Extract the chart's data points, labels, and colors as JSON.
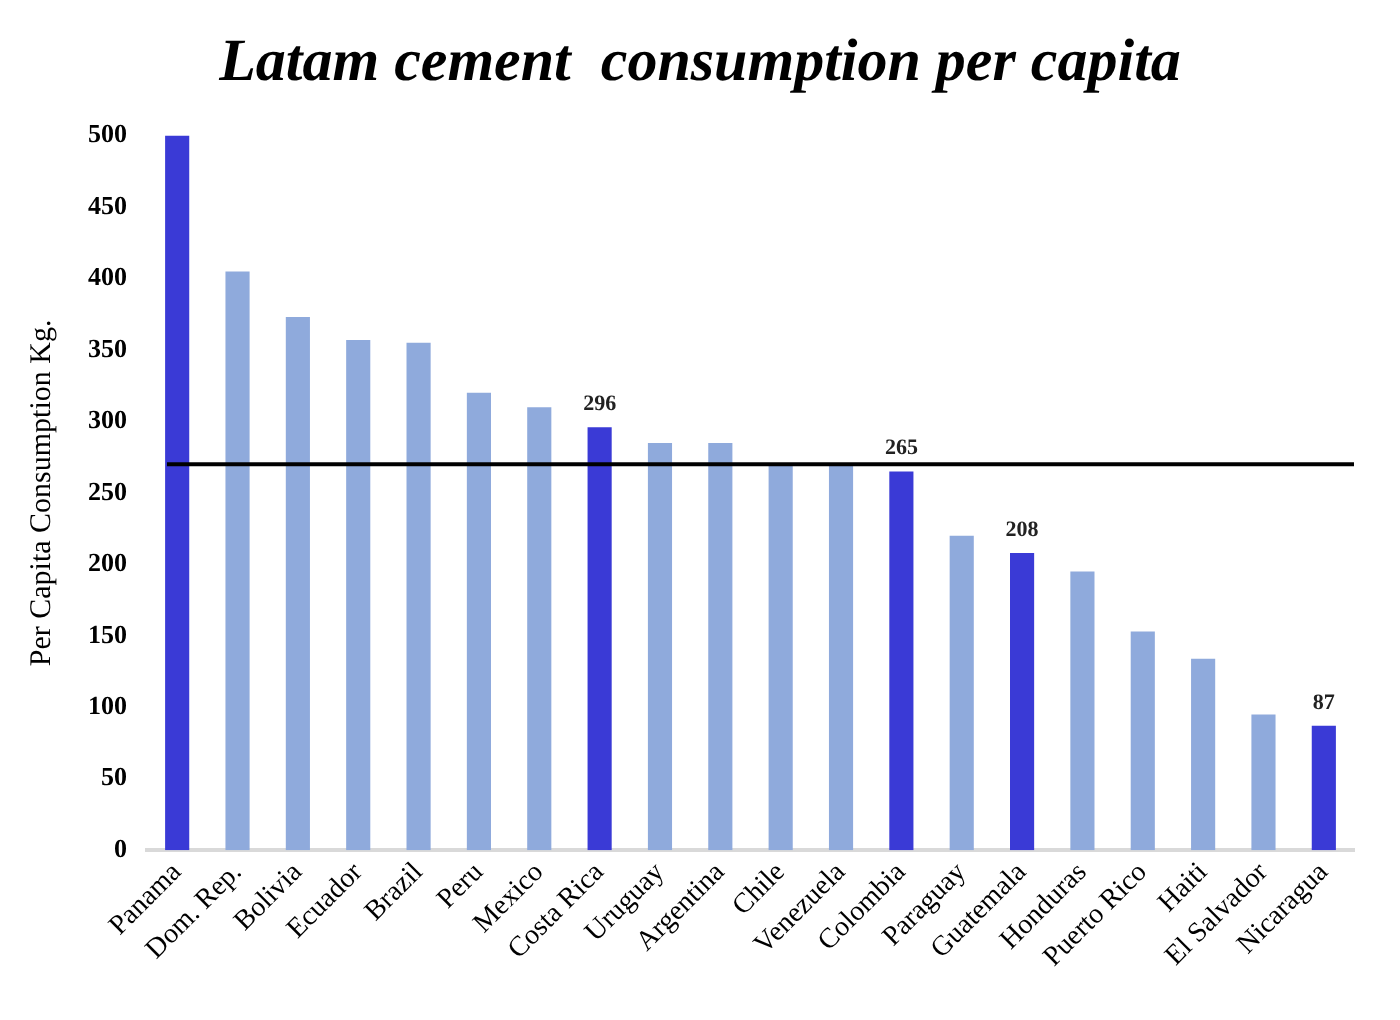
{
  "chart_data": {
    "type": "bar",
    "title": "Latam cement  consumption per capita",
    "ylabel": "Per Capita Consumption Kg.",
    "categories": [
      "Panama",
      "Dom. Rep.",
      "Bolivia",
      "Ecuador",
      "Brazil",
      "Peru",
      "Mexico",
      "Costa Rica",
      "Uruguay",
      "Argentina",
      "Chile",
      "Venezuela",
      "Colombia",
      "Paraguay",
      "Guatemala",
      "Honduras",
      "Puerto Rico",
      "Haiti",
      "El Salvador",
      "Nicaragua"
    ],
    "values": [
      500,
      405,
      373,
      357,
      355,
      320,
      310,
      296,
      285,
      285,
      270,
      270,
      265,
      220,
      208,
      195,
      153,
      134,
      95,
      87
    ],
    "colors": [
      "#3a3ad6",
      "#8faadc",
      "#8faadc",
      "#8faadc",
      "#8faadc",
      "#8faadc",
      "#8faadc",
      "#3a3ad6",
      "#8faadc",
      "#8faadc",
      "#8faadc",
      "#8faadc",
      "#3a3ad6",
      "#8faadc",
      "#3a3ad6",
      "#8faadc",
      "#8faadc",
      "#8faadc",
      "#8faadc",
      "#3a3ad6"
    ],
    "value_labels": [
      null,
      null,
      null,
      null,
      null,
      null,
      null,
      "296",
      null,
      null,
      null,
      null,
      "265",
      null,
      "208",
      null,
      null,
      null,
      null,
      "87"
    ],
    "ylim": [
      0,
      500
    ],
    "yticks": [
      0,
      50,
      100,
      150,
      200,
      250,
      300,
      350,
      400,
      450,
      500
    ],
    "ref_lines": [
      {
        "axis": "y",
        "value": 270,
        "color": "#000000"
      }
    ],
    "grid": false,
    "legend": false
  }
}
